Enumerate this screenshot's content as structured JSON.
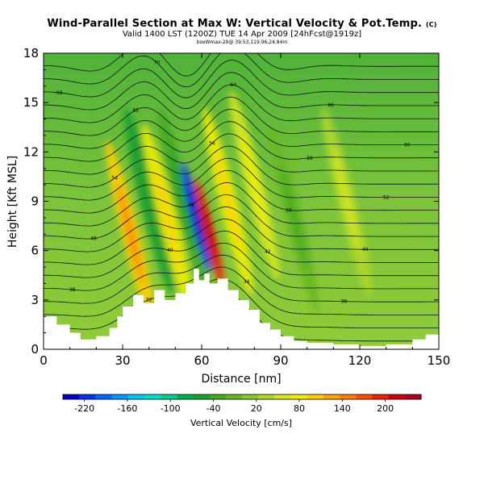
{
  "header": {
    "title": "Wind-Parallel Section at Max W: Vertical Velocity & Pot.Temp.",
    "title_mark": "(C)",
    "subtitle": "Valid 1400 LST (1200Z) TUE 14 Apr 2009 [24hFcst@1919z]",
    "subsubtitle": "boxWmax-29@ 39.53,119.96,24.84m"
  },
  "chart_data": {
    "type": "heatmap",
    "title": "Wind-Parallel Section at Max W: Vertical Velocity & Pot.Temp.",
    "xlabel": "Distance [nm]",
    "ylabel": "Height [Kft MSL]",
    "xlim": [
      0,
      150
    ],
    "ylim": [
      0,
      18
    ],
    "xticks": [
      "0",
      "30",
      "60",
      "90",
      "120",
      "150"
    ],
    "yticks": [
      "0",
      "3",
      "6",
      "9",
      "12",
      "15",
      "18"
    ],
    "xtick_values": [
      0,
      30,
      60,
      90,
      120,
      150
    ],
    "ytick_values": [
      0,
      3,
      6,
      9,
      12,
      15,
      18
    ],
    "terrain": [
      [
        0,
        2.0
      ],
      [
        5,
        1.5
      ],
      [
        10,
        1.0
      ],
      [
        14,
        0.6
      ],
      [
        20,
        0.8
      ],
      [
        25,
        1.3
      ],
      [
        28,
        2.0
      ],
      [
        30,
        2.6
      ],
      [
        34,
        3.3
      ],
      [
        38,
        2.8
      ],
      [
        42,
        3.6
      ],
      [
        46,
        3.0
      ],
      [
        50,
        3.4
      ],
      [
        54,
        4.0
      ],
      [
        57,
        4.9
      ],
      [
        59,
        4.2
      ],
      [
        61,
        4.6
      ],
      [
        63,
        4.0
      ],
      [
        66,
        4.3
      ],
      [
        70,
        3.6
      ],
      [
        74,
        3.0
      ],
      [
        78,
        2.4
      ],
      [
        82,
        1.6
      ],
      [
        86,
        1.2
      ],
      [
        90,
        0.8
      ],
      [
        95,
        0.5
      ],
      [
        100,
        0.4
      ],
      [
        110,
        0.3
      ],
      [
        120,
        0.2
      ],
      [
        130,
        0.3
      ],
      [
        140,
        0.6
      ],
      [
        145,
        0.9
      ],
      [
        150,
        0.9
      ]
    ],
    "velocity_features": [
      {
        "x": 33,
        "y": 7,
        "value": 110
      },
      {
        "x": 40,
        "y": 9,
        "value": -50
      },
      {
        "x": 47,
        "y": 8,
        "value": 90
      },
      {
        "x": 53,
        "y": 9,
        "value": -40
      },
      {
        "x": 58,
        "y": 8,
        "value": -220
      },
      {
        "x": 63,
        "y": 7,
        "value": 200
      },
      {
        "x": 70,
        "y": 9,
        "value": 80
      },
      {
        "x": 80,
        "y": 10,
        "value": 60
      },
      {
        "x": 95,
        "y": 8,
        "value": -20
      },
      {
        "x": 115,
        "y": 9,
        "value": 40
      }
    ],
    "isentrope_labels": [
      "30",
      "32",
      "34",
      "36",
      "38",
      "40",
      "42",
      "44",
      "46",
      "48",
      "50",
      "52",
      "54",
      "56",
      "58",
      "60",
      "62",
      "64",
      "66",
      "68",
      "70",
      "72"
    ],
    "colorbar": {
      "title": "Vertical Velocity [cm/s]",
      "tick_labels": [
        "-220",
        "-160",
        "-100",
        "-40",
        "20",
        "80",
        "140",
        "200"
      ],
      "tick_values": [
        -220,
        -160,
        -100,
        -40,
        20,
        80,
        140,
        200
      ],
      "range": [
        -250,
        250
      ],
      "colors": [
        "#0000cc",
        "#0033ee",
        "#0066ff",
        "#0099ff",
        "#00c8f0",
        "#00e0d0",
        "#00d090",
        "#00b050",
        "#1aa030",
        "#44aa22",
        "#66b826",
        "#88c830",
        "#b0d828",
        "#d8e820",
        "#f0f000",
        "#ffd000",
        "#ffa800",
        "#ff8000",
        "#ff5000",
        "#ee2000",
        "#d00010",
        "#b00020"
      ]
    }
  }
}
